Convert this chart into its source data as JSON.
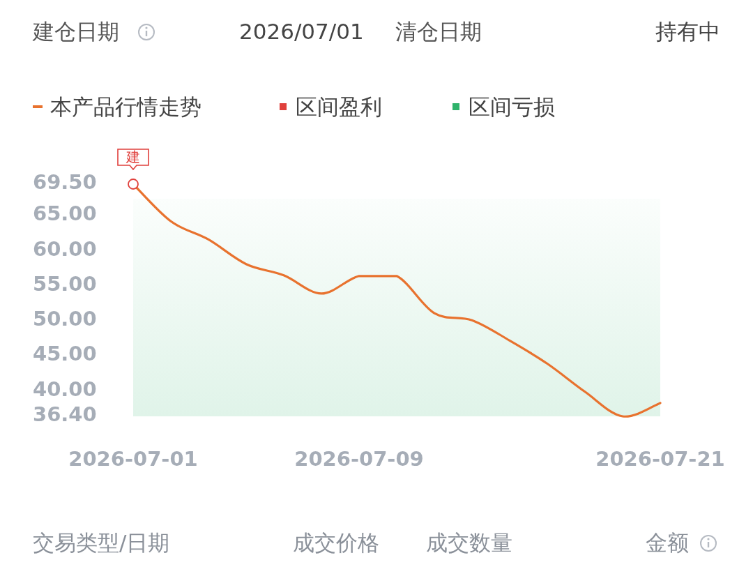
{
  "chart_data": {
    "type": "line",
    "categories": [
      "2026-07-01",
      null,
      null,
      null,
      null,
      null,
      "2026-07-09",
      null,
      null,
      null,
      null,
      null,
      null,
      null,
      "2026-07-21"
    ],
    "series": [
      {
        "name": "本产品行情走势",
        "color": "#e8722e",
        "values": [
          69.5,
          64.2,
          61.6,
          58.1,
          56.5,
          53.9,
          56.4,
          56.4,
          51.1,
          50.1,
          47.2,
          43.9,
          39.9,
          36.4,
          38.3
        ]
      },
      {
        "name": "区间盈利",
        "color": "#e0403c",
        "values": [
          null,
          null,
          null,
          null,
          null,
          null,
          null,
          null,
          null,
          null,
          null,
          null,
          null,
          null,
          null
        ]
      }
    ],
    "ylim": [
      36.4,
      69.5
    ],
    "yticks": [
      {
        "value": 36.4,
        "label": "36.40"
      },
      {
        "value": 40,
        "label": "40.00"
      },
      {
        "value": 45,
        "label": "45.00"
      },
      {
        "value": 50,
        "label": "50.00"
      },
      {
        "value": 55,
        "label": "55.00"
      },
      {
        "value": 60,
        "label": "60.00"
      },
      {
        "value": 65,
        "label": "65.00"
      },
      {
        "value": 69.5,
        "label": "69.50"
      }
    ],
    "bands": [
      {
        "axis": "x",
        "from": "2026-07-01",
        "to": "2026-07-21",
        "label": "区间亏损",
        "color": "#2fb36b"
      }
    ],
    "legend": "top left",
    "annotations": [
      "建仓日期",
      "2026/07/01",
      "清仓日期",
      "持有中",
      "交易类型/日期",
      "成交价格",
      "成交数量",
      "金额",
      {
        "text": "建",
        "x": "2026-07-01",
        "y": 69.5
      }
    ]
  }
}
